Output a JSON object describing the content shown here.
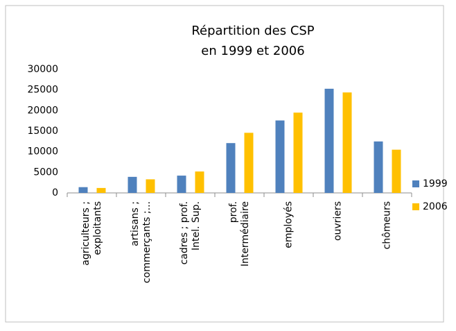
{
  "chart_data": {
    "type": "bar",
    "title": [
      "Répartition des CSP",
      "en 1999 et 2006"
    ],
    "categories": [
      [
        "agriculteurs ;",
        "exploitants"
      ],
      [
        "artisans ;",
        "commerçants ;..."
      ],
      [
        "cadres ; prof.",
        "Intel. Sup."
      ],
      [
        "prof.",
        "Intermédiaire"
      ],
      [
        "employés"
      ],
      [
        "ouvriers"
      ],
      [
        "chômeurs"
      ]
    ],
    "series": [
      {
        "name": "1999",
        "color": "#4f81bd",
        "values": [
          1400,
          3900,
          4200,
          12100,
          17600,
          25300,
          12500
        ]
      },
      {
        "name": "2006",
        "color": "#ffc000",
        "values": [
          1200,
          3300,
          5200,
          14600,
          19500,
          24400,
          10500
        ]
      }
    ],
    "ylim": [
      0,
      30000
    ],
    "yticks": [
      0,
      5000,
      10000,
      15000,
      20000,
      25000,
      30000
    ],
    "grid": false,
    "legend": "right"
  }
}
